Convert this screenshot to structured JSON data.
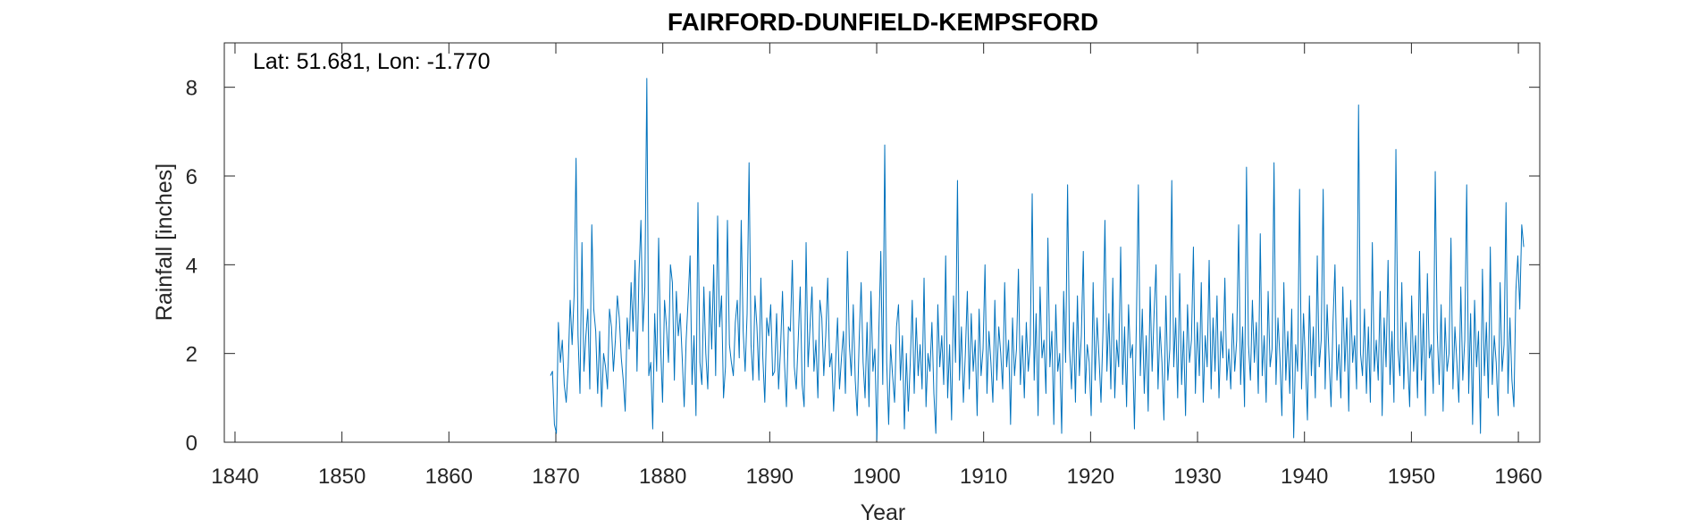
{
  "chart_data": {
    "type": "line",
    "title": "FAIRFORD-DUNFIELD-KEMPSFORD",
    "xlabel": "Year",
    "ylabel": "Rainfall [inches]",
    "annotation": "Lat: 51.681, Lon: -1.770",
    "xlim": [
      1839,
      1962
    ],
    "ylim": [
      0,
      9
    ],
    "xticks": [
      1840,
      1850,
      1860,
      1870,
      1880,
      1890,
      1900,
      1910,
      1920,
      1930,
      1940,
      1950,
      1960
    ],
    "yticks": [
      0,
      2,
      4,
      6,
      8
    ],
    "grid": false,
    "line_color": "#0072BD",
    "series": [
      {
        "x_start": 1869.5,
        "x_step_years": 0.08333,
        "values": [
          1.5,
          1.6,
          0.4,
          0.2,
          2.7,
          1.8,
          2.3,
          1.3,
          0.9,
          1.7,
          3.2,
          2.2,
          3.3,
          6.4,
          2.4,
          1.1,
          4.5,
          1.6,
          2.4,
          3.0,
          1.2,
          4.9,
          3.0,
          2.5,
          1.1,
          2.5,
          0.8,
          2.0,
          1.7,
          1.2,
          3.0,
          2.6,
          1.6,
          2.3,
          3.3,
          2.8,
          1.9,
          1.4,
          0.7,
          2.8,
          2.1,
          3.6,
          2.5,
          4.1,
          1.6,
          3.8,
          5.0,
          2.5,
          3.5,
          8.2,
          1.5,
          1.8,
          0.3,
          2.9,
          1.6,
          4.6,
          2.2,
          0.9,
          3.2,
          2.6,
          1.8,
          4.0,
          3.6,
          1.4,
          3.4,
          2.4,
          2.9,
          1.9,
          0.8,
          2.3,
          3.2,
          4.2,
          1.3,
          2.4,
          0.6,
          5.4,
          1.8,
          1.3,
          3.5,
          2.0,
          1.2,
          3.4,
          2.1,
          4.0,
          1.5,
          5.1,
          2.6,
          3.3,
          1.0,
          1.7,
          5.0,
          2.2,
          1.8,
          1.5,
          2.7,
          3.2,
          1.9,
          5.0,
          2.5,
          1.6,
          2.9,
          6.3,
          2.2,
          1.4,
          3.3,
          2.6,
          1.4,
          3.7,
          1.9,
          0.9,
          2.8,
          2.4,
          3.1,
          1.5,
          1.6,
          2.9,
          1.2,
          2.1,
          3.4,
          1.8,
          0.8,
          2.6,
          2.5,
          4.1,
          1.7,
          1.2,
          2.3,
          3.5,
          1.3,
          0.8,
          4.5,
          1.7,
          2.6,
          3.5,
          1.6,
          2.3,
          1.0,
          3.2,
          2.8,
          1.5,
          2.4,
          3.7,
          1.7,
          2.0,
          0.7,
          1.8,
          2.8,
          1.2,
          1.9,
          2.5,
          1.1,
          4.3,
          2.2,
          1.5,
          3.1,
          1.4,
          0.6,
          2.3,
          3.6,
          1.8,
          1.0,
          2.7,
          0.8,
          3.4,
          1.6,
          2.1,
          0.05,
          2.5,
          4.3,
          1.3,
          6.7,
          1.8,
          0.4,
          2.2,
          1.5,
          0.9,
          2.6,
          3.1,
          1.4,
          2.4,
          0.3,
          2.0,
          0.7,
          1.8,
          3.2,
          1.1,
          2.8,
          1.5,
          2.2,
          1.2,
          3.7,
          0.8,
          2.0,
          1.6,
          2.7,
          1.1,
          0.2,
          3.1,
          1.7,
          2.4,
          1.3,
          4.2,
          1.0,
          2.2,
          0.5,
          3.3,
          1.8,
          5.9,
          1.4,
          2.6,
          0.9,
          2.0,
          3.4,
          1.2,
          2.9,
          1.6,
          2.3,
          0.6,
          3.0,
          1.5,
          2.1,
          4.0,
          1.1,
          2.5,
          1.8,
          0.9,
          3.2,
          1.4,
          2.6,
          2.0,
          1.2,
          3.6,
          1.7,
          2.3,
          0.4,
          2.8,
          1.5,
          2.1,
          3.9,
          1.3,
          2.4,
          1.0,
          2.7,
          1.6,
          2.2,
          5.6,
          1.4,
          2.9,
          0.6,
          3.5,
          1.9,
          2.3,
          1.1,
          4.6,
          1.7,
          2.5,
          0.4,
          3.1,
          1.6,
          2.0,
          0.2,
          3.4,
          1.8,
          5.8,
          2.1,
          1.2,
          2.7,
          0.9,
          3.3,
          1.5,
          2.4,
          4.3,
          1.1,
          2.2,
          1.8,
          0.6,
          3.6,
          1.4,
          2.8,
          1.9,
          0.9,
          2.5,
          5.0,
          1.6,
          2.9,
          1.2,
          3.7,
          1.0,
          2.3,
          1.7,
          4.4,
          1.3,
          2.6,
          0.8,
          3.1,
          1.9,
          2.2,
          0.3,
          2.7,
          5.8,
          1.5,
          3.0,
          1.1,
          2.4,
          0.7,
          3.5,
          1.6,
          2.9,
          4.0,
          1.2,
          2.6,
          1.8,
          0.5,
          3.3,
          1.4,
          2.1,
          5.9,
          1.7,
          2.8,
          1.0,
          3.8,
          1.3,
          2.5,
          0.6,
          3.1,
          1.8,
          2.3,
          4.4,
          1.1,
          2.7,
          1.5,
          3.6,
          0.9,
          2.4,
          1.7,
          4.1,
          1.2,
          2.8,
          1.6,
          3.3,
          1.0,
          2.5,
          1.9,
          3.7,
          1.4,
          2.1,
          1.2,
          2.9,
          1.6,
          2.3,
          4.9,
          1.3,
          2.6,
          0.8,
          6.2,
          2.2,
          1.4,
          3.2,
          1.8,
          2.7,
          1.1,
          4.7,
          1.5,
          2.4,
          0.9,
          3.4,
          1.7,
          2.1,
          6.3,
          1.3,
          2.8,
          1.9,
          0.6,
          3.6,
          1.4,
          2.5,
          1.1,
          3.0,
          0.1,
          2.2,
          1.6,
          5.7,
          1.2,
          2.9,
          1.8,
          0.5,
          3.3,
          1.5,
          2.6,
          1.0,
          4.2,
          1.7,
          2.3,
          5.7,
          1.2,
          3.1,
          1.9,
          0.8,
          2.7,
          4.0,
          1.4,
          2.2,
          1.0,
          3.5,
          1.6,
          2.8,
          0.7,
          3.2,
          1.8,
          2.4,
          1.2,
          7.6,
          2.0,
          1.5,
          3.0,
          1.1,
          2.6,
          0.9,
          4.5,
          1.6,
          2.3,
          1.4,
          3.4,
          0.6,
          2.8,
          1.7,
          4.1,
          1.3,
          2.5,
          0.9,
          6.6,
          2.1,
          1.5,
          3.6,
          1.2,
          2.7,
          1.8,
          0.8,
          3.3,
          1.6,
          2.4,
          1.0,
          4.3,
          1.4,
          2.9,
          0.6,
          3.8,
          1.9,
          2.2,
          1.1,
          6.1,
          2.5,
          1.3,
          3.1,
          0.7,
          2.8,
          1.6,
          2.0,
          4.6,
          1.2,
          2.6,
          1.8,
          0.9,
          3.5,
          1.4,
          2.3,
          5.8,
          1.1,
          2.9,
          0.4,
          3.2,
          1.7,
          2.5,
          0.2,
          3.9,
          1.5,
          2.7,
          1.0,
          4.4,
          1.3,
          2.4,
          1.8,
          0.6,
          3.6,
          1.6,
          2.2,
          5.4,
          1.1,
          2.8,
          1.4,
          0.8,
          3.4,
          4.2,
          3.0,
          4.9,
          4.4
        ]
      }
    ]
  }
}
